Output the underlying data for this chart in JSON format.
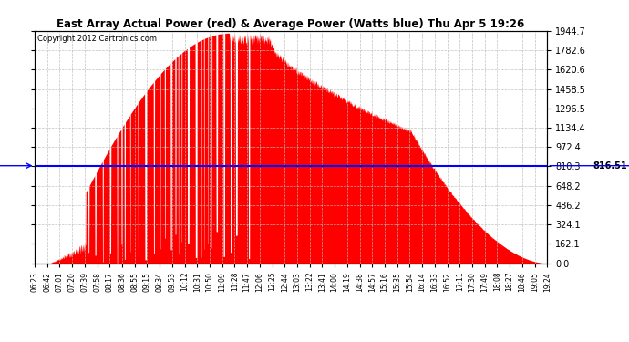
{
  "title": "East Array Actual Power (red) & Average Power (Watts blue) Thu Apr 5 19:26",
  "copyright": "Copyright 2012 Cartronics.com",
  "average_power": 816.51,
  "ymax": 1944.7,
  "yticks": [
    0.0,
    162.1,
    324.1,
    486.2,
    648.2,
    810.3,
    972.4,
    1134.4,
    1296.5,
    1458.5,
    1620.6,
    1782.6,
    1944.7
  ],
  "ytick_labels_right": [
    "0.0",
    "162.1",
    "324.1",
    "486.2",
    "648.2",
    "810.3",
    "972.4",
    "1134.4",
    "1296.5",
    "1458.5",
    "1620.6",
    "1782.6",
    "1944.7"
  ],
  "bg_color": "#ffffff",
  "plot_bg_color": "#ffffff",
  "grid_color": "#bbbbbb",
  "line_color_avg": "#0000ff",
  "fill_color": "#ff0000",
  "avg_label": "816.51",
  "xtick_labels": [
    "06:23",
    "06:42",
    "07:01",
    "07:20",
    "07:39",
    "07:58",
    "08:17",
    "08:36",
    "08:55",
    "09:15",
    "09:34",
    "09:53",
    "10:12",
    "10:31",
    "10:50",
    "11:09",
    "11:28",
    "11:47",
    "12:06",
    "12:25",
    "12:44",
    "13:03",
    "13:22",
    "13:41",
    "14:00",
    "14:19",
    "14:38",
    "14:57",
    "15:16",
    "15:35",
    "15:54",
    "16:14",
    "16:33",
    "16:52",
    "17:11",
    "17:30",
    "17:49",
    "18:08",
    "18:27",
    "18:46",
    "19:05",
    "19:24"
  ]
}
